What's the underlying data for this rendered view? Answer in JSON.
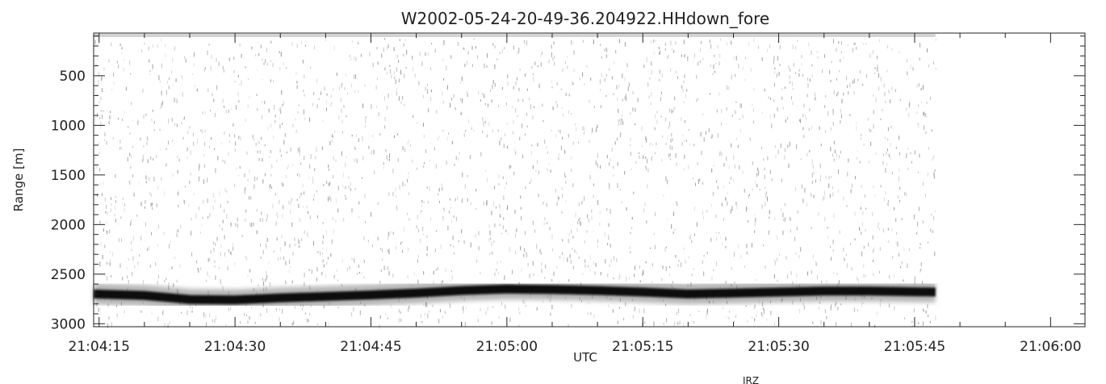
{
  "chart_data": {
    "type": "heatmap",
    "title": "W2002-05-24-20-49-36.204922.HHdown_fore",
    "xlabel": "UTC",
    "ylabel": "Range [m]",
    "corner_note": "IRZ",
    "x_tick_labels": [
      "21:04:15",
      "21:04:30",
      "21:04:45",
      "21:05:00",
      "21:05:15",
      "21:05:30",
      "21:05:45",
      "21:06:00"
    ],
    "x_tick_seconds": [
      0,
      15,
      30,
      45,
      60,
      75,
      90,
      105
    ],
    "xlim_seconds": [
      -0.6,
      108.8
    ],
    "data_x_range_seconds": [
      -0.6,
      92.3
    ],
    "y_tick_values": [
      500,
      1000,
      1500,
      2000,
      2500,
      3000
    ],
    "ylim": [
      3030,
      70
    ],
    "y_inverted": true,
    "colormap": "grayscale (white = low, black = high)",
    "surface_echo": {
      "description": "strong return band",
      "t_seconds": [
        -0.6,
        5,
        10,
        15,
        20,
        25,
        30,
        35,
        40,
        45,
        50,
        55,
        60,
        65,
        70,
        75,
        80,
        85,
        92.3
      ],
      "range_m": [
        2700,
        2715,
        2755,
        2760,
        2740,
        2725,
        2710,
        2690,
        2665,
        2650,
        2655,
        2665,
        2680,
        2700,
        2690,
        2680,
        2670,
        2670,
        2680
      ]
    }
  }
}
